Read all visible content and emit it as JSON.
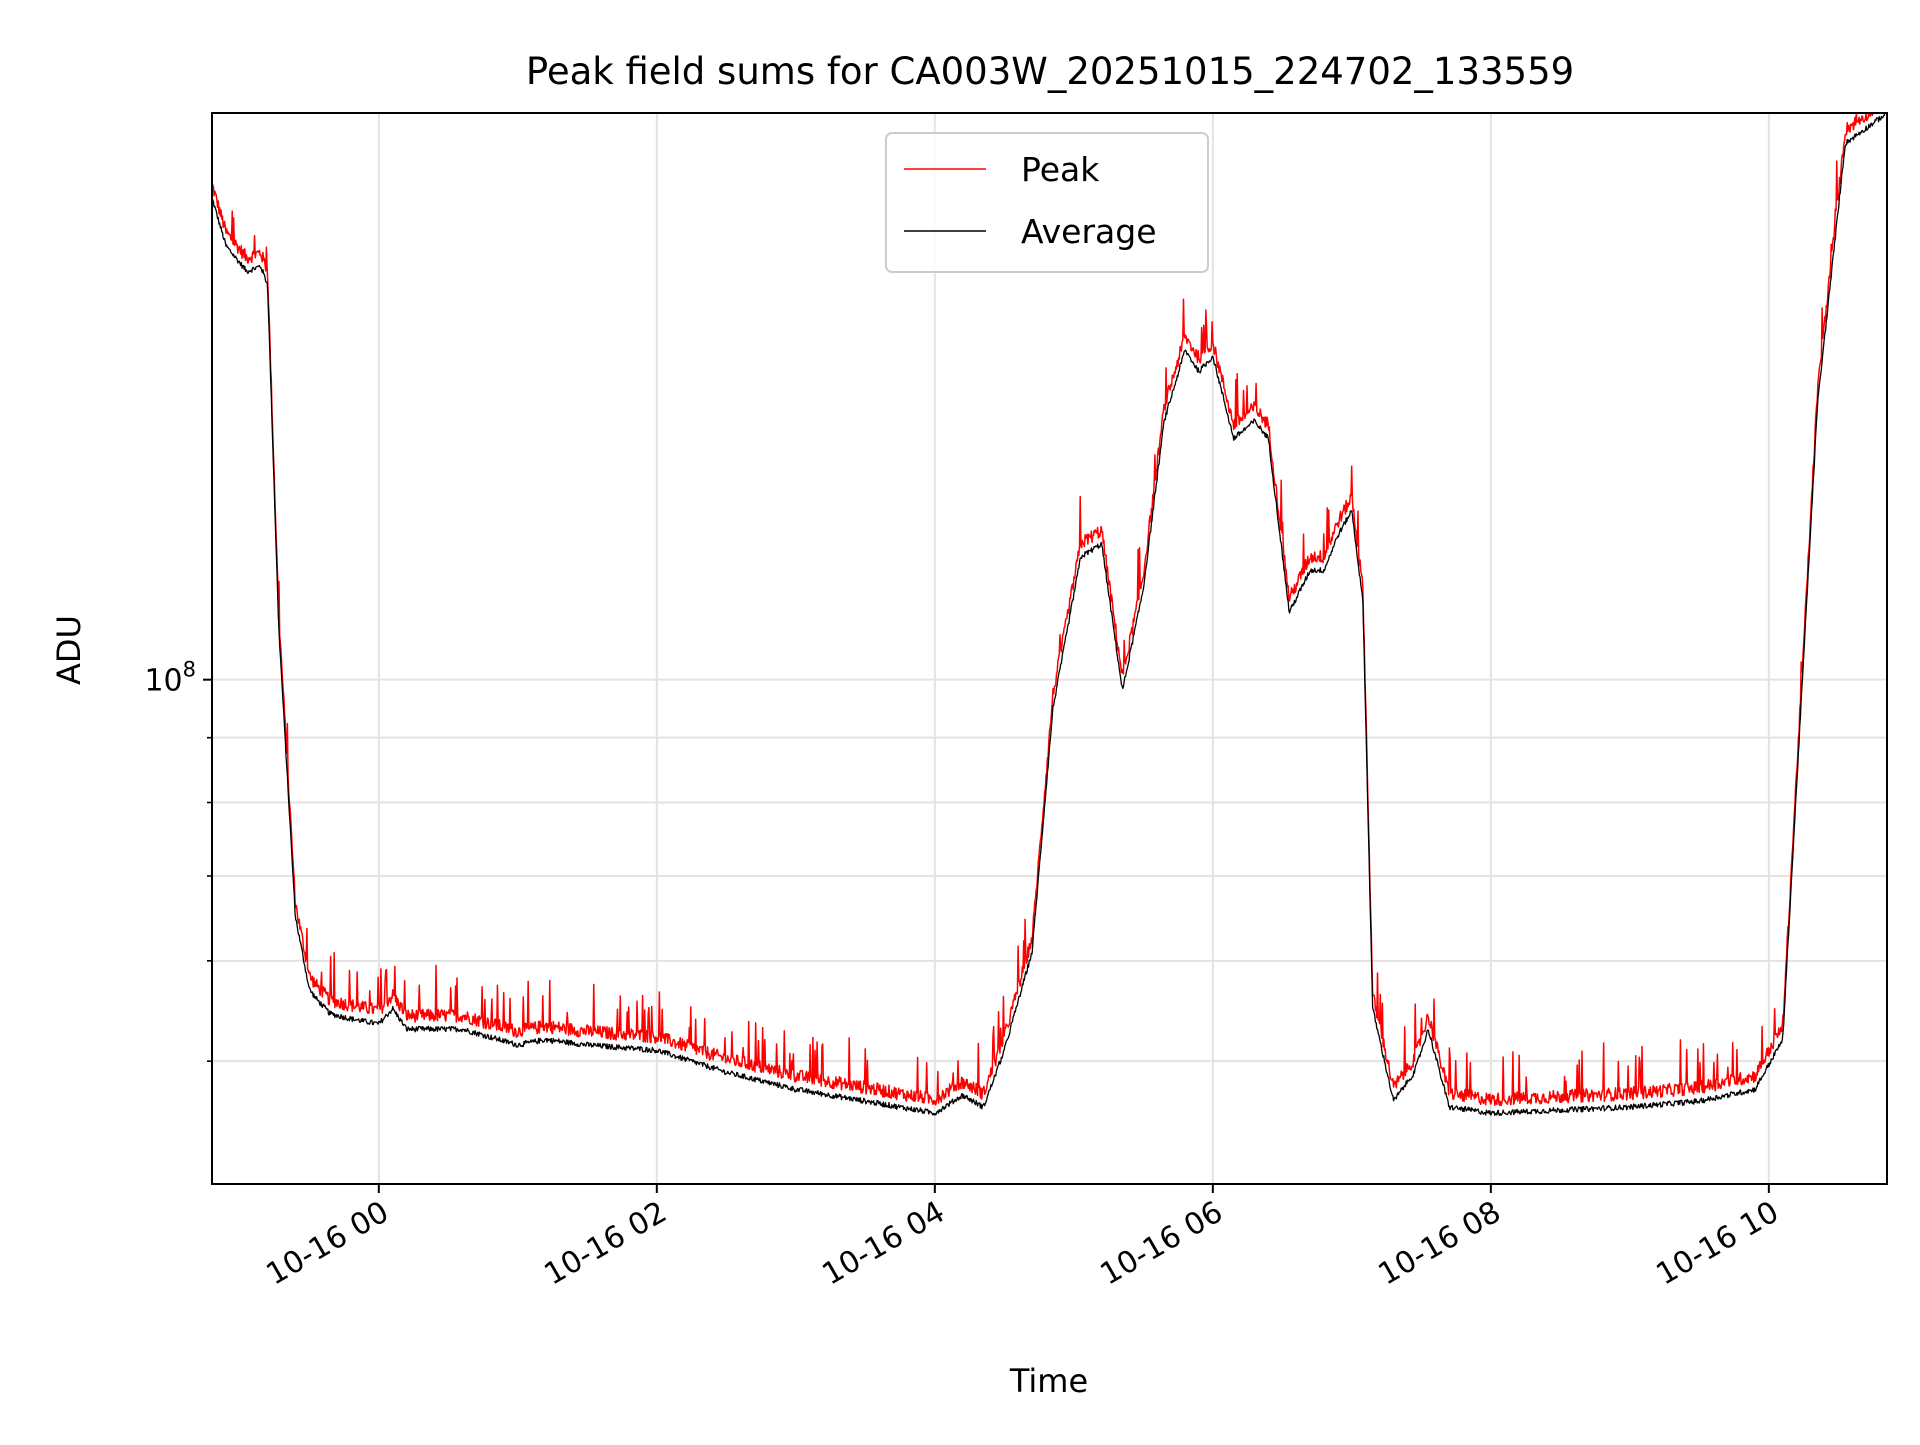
{
  "chart_data": {
    "type": "line",
    "title": "Peak field sums for CA003W_20251015_224702_133559",
    "xlabel": "Time",
    "ylabel": "ADU",
    "xscale": "time",
    "yscale": "log",
    "x_range_hours": [
      -1.2,
      10.85
    ],
    "ylim": [
      40000000,
      280000000
    ],
    "grid": true,
    "legend_location": "upper center",
    "x_ticks": [
      {
        "hour": 0,
        "label": "10-16 00"
      },
      {
        "hour": 2,
        "label": "10-16 02"
      },
      {
        "hour": 4,
        "label": "10-16 04"
      },
      {
        "hour": 6,
        "label": "10-16 06"
      },
      {
        "hour": 8,
        "label": "10-16 08"
      },
      {
        "hour": 10,
        "label": "10-16 10"
      }
    ],
    "y_major_ticks": [
      {
        "value": 100000000,
        "label_base": "10",
        "label_exp": "8"
      }
    ],
    "y_minor_ticks": [
      50000000,
      60000000,
      70000000,
      80000000,
      90000000
    ],
    "series": [
      {
        "name": "Peak",
        "color": "#ff0000",
        "offset": 1.025,
        "noise": 0.012,
        "spike_prob": 0.06
      },
      {
        "name": "Average",
        "color": "#000000",
        "offset": 1.0,
        "noise": 0.005,
        "spike_prob": 0
      }
    ],
    "curve_hours": [
      -1.2,
      -1.1,
      -0.95,
      -0.85,
      -0.8,
      -0.72,
      -0.6,
      -0.5,
      -0.45,
      -0.35,
      -0.2,
      0.0,
      0.1,
      0.2,
      0.6,
      1.0,
      1.2,
      1.5,
      2.0,
      2.5,
      3.0,
      3.5,
      4.0,
      4.2,
      4.35,
      4.5,
      4.7,
      4.85,
      5.05,
      5.2,
      5.35,
      5.5,
      5.65,
      5.8,
      5.9,
      6.0,
      6.15,
      6.3,
      6.4,
      6.55,
      6.7,
      6.8,
      6.9,
      7.0,
      7.08,
      7.15,
      7.3,
      7.45,
      7.55,
      7.7,
      8.0,
      9.0,
      9.5,
      9.9,
      10.1,
      10.35,
      10.55,
      10.85
    ],
    "curve_values": [
      240000000,
      220000000,
      210000000,
      212000000,
      205000000,
      110000000,
      65000000,
      57000000,
      56000000,
      54500000,
      54000000,
      53500000,
      55000000,
      53000000,
      53000000,
      51500000,
      52000000,
      51500000,
      51000000,
      49000000,
      47500000,
      46500000,
      45500000,
      47000000,
      46000000,
      51000000,
      61000000,
      95000000,
      125000000,
      128000000,
      98000000,
      118000000,
      160000000,
      182000000,
      175000000,
      180000000,
      155000000,
      160000000,
      155000000,
      113000000,
      122000000,
      122000000,
      130000000,
      136000000,
      115000000,
      55000000,
      46500000,
      49000000,
      53000000,
      46000000,
      45500000,
      46000000,
      46500000,
      47500000,
      52000000,
      165000000,
      265000000,
      280000000
    ]
  },
  "legend": {
    "peak_label": "Peak",
    "average_label": "Average"
  }
}
